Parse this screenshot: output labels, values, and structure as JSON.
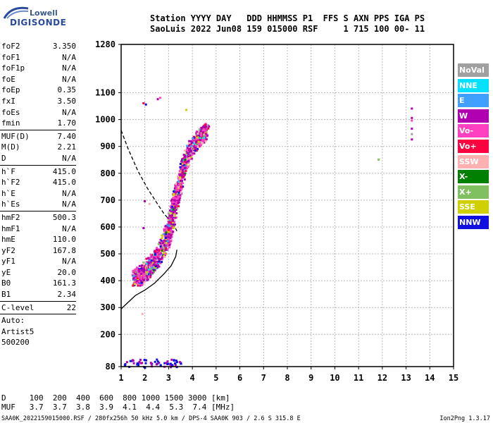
{
  "logo": {
    "line1": "Lowell",
    "line2": "DIGISONDE"
  },
  "header": {
    "row1": "Station YYYY DAY   DDD HHMMSS P1  FFS S AXN PPS IGA PS",
    "row2": "SaoLuis 2022 Jun08 159 015000 RSF     1 715 100 00- 11"
  },
  "params": {
    "group1": [
      {
        "k": "foF2",
        "v": "3.350"
      },
      {
        "k": "foF1",
        "v": "N/A"
      },
      {
        "k": "foF1p",
        "v": "N/A"
      },
      {
        "k": "foE",
        "v": "N/A"
      },
      {
        "k": "foEp",
        "v": "0.35"
      },
      {
        "k": "fxI",
        "v": "3.50"
      },
      {
        "k": "foEs",
        "v": "N/A"
      },
      {
        "k": "fmin",
        "v": "1.70"
      }
    ],
    "group2": [
      {
        "k": "MUF(D)",
        "v": "7.40"
      },
      {
        "k": "M(D)",
        "v": "2.21"
      },
      {
        "k": "D",
        "v": "N/A"
      }
    ],
    "group3": [
      {
        "k": "h`F",
        "v": "415.0"
      },
      {
        "k": "h`F2",
        "v": "415.0"
      },
      {
        "k": "h`E",
        "v": "N/A"
      },
      {
        "k": "h`Es",
        "v": "N/A"
      }
    ],
    "group4": [
      {
        "k": "hmF2",
        "v": "500.3"
      },
      {
        "k": "hmF1",
        "v": "N/A"
      },
      {
        "k": "hmE",
        "v": "110.0"
      },
      {
        "k": "yF2",
        "v": "167.8"
      },
      {
        "k": "yF1",
        "v": "N/A"
      },
      {
        "k": "yE",
        "v": "20.0"
      },
      {
        "k": "B0",
        "v": "161.3"
      },
      {
        "k": "B1",
        "v": "2.34"
      }
    ],
    "group5": [
      {
        "k": "C-level",
        "v": "22"
      }
    ],
    "auto": [
      "Auto:",
      "Artist5",
      "500200"
    ]
  },
  "legend": [
    {
      "label": "NoVal",
      "color": "#a0a0a0"
    },
    {
      "label": "NNE",
      "color": "#00e0ff"
    },
    {
      "label": "E",
      "color": "#40a0ff"
    },
    {
      "label": "W",
      "color": "#b000b0"
    },
    {
      "label": "Vo-",
      "color": "#ff40c0"
    },
    {
      "label": "Vo+",
      "color": "#ff0040"
    },
    {
      "label": "SSW",
      "color": "#ffb0b0"
    },
    {
      "label": "X-",
      "color": "#008000"
    },
    {
      "label": "X+",
      "color": "#80c060"
    },
    {
      "label": "SSE",
      "color": "#d0d000"
    },
    {
      "label": "NNW",
      "color": "#1010e0"
    }
  ],
  "footer": {
    "row1": "D     100  200  400  600  800 1000 1500 3000 [km]",
    "row2": "MUF   3.7  3.7  3.8  3.9  4.1  4.4  5.3  7.4 [MHz]",
    "file": "SAA0K_2022159015000.RSF / 280fx256h 50 kHz 5.0 km / DPS-4 SAA0K 903 / 2.6 S 315.8 E",
    "version": "Ion2Png 1.3.17"
  },
  "chart_data": {
    "type": "scatter",
    "xlabel": "",
    "ylabel": "",
    "xlim": [
      1,
      15
    ],
    "ylim": [
      80,
      1280
    ],
    "x_ticks": [
      1,
      2,
      3,
      4,
      5,
      6,
      7,
      8,
      9,
      10,
      11,
      12,
      13,
      14,
      15
    ],
    "y_ticks": [
      80,
      200,
      300,
      400,
      500,
      600,
      700,
      800,
      900,
      1000,
      1100,
      1280
    ],
    "grid": true,
    "legend_placement": "right",
    "profile_curve": [
      [
        1.0,
        295
      ],
      [
        1.3,
        320
      ],
      [
        1.6,
        345
      ],
      [
        2.0,
        365
      ],
      [
        2.4,
        390
      ],
      [
        2.8,
        425
      ],
      [
        3.1,
        455
      ],
      [
        3.3,
        490
      ],
      [
        3.35,
        515
      ]
    ],
    "dashed_curve": [
      [
        1.0,
        960
      ],
      [
        1.3,
        890
      ],
      [
        1.7,
        810
      ],
      [
        2.1,
        745
      ],
      [
        2.5,
        690
      ],
      [
        2.8,
        650
      ],
      [
        3.0,
        630
      ],
      [
        3.2,
        610
      ],
      [
        3.35,
        585
      ]
    ],
    "model_curve": [
      [
        2.2,
        410
      ],
      [
        2.6,
        470
      ],
      [
        2.9,
        520
      ],
      [
        3.1,
        580
      ],
      [
        3.2,
        640
      ],
      [
        3.3,
        700
      ]
    ]
  }
}
